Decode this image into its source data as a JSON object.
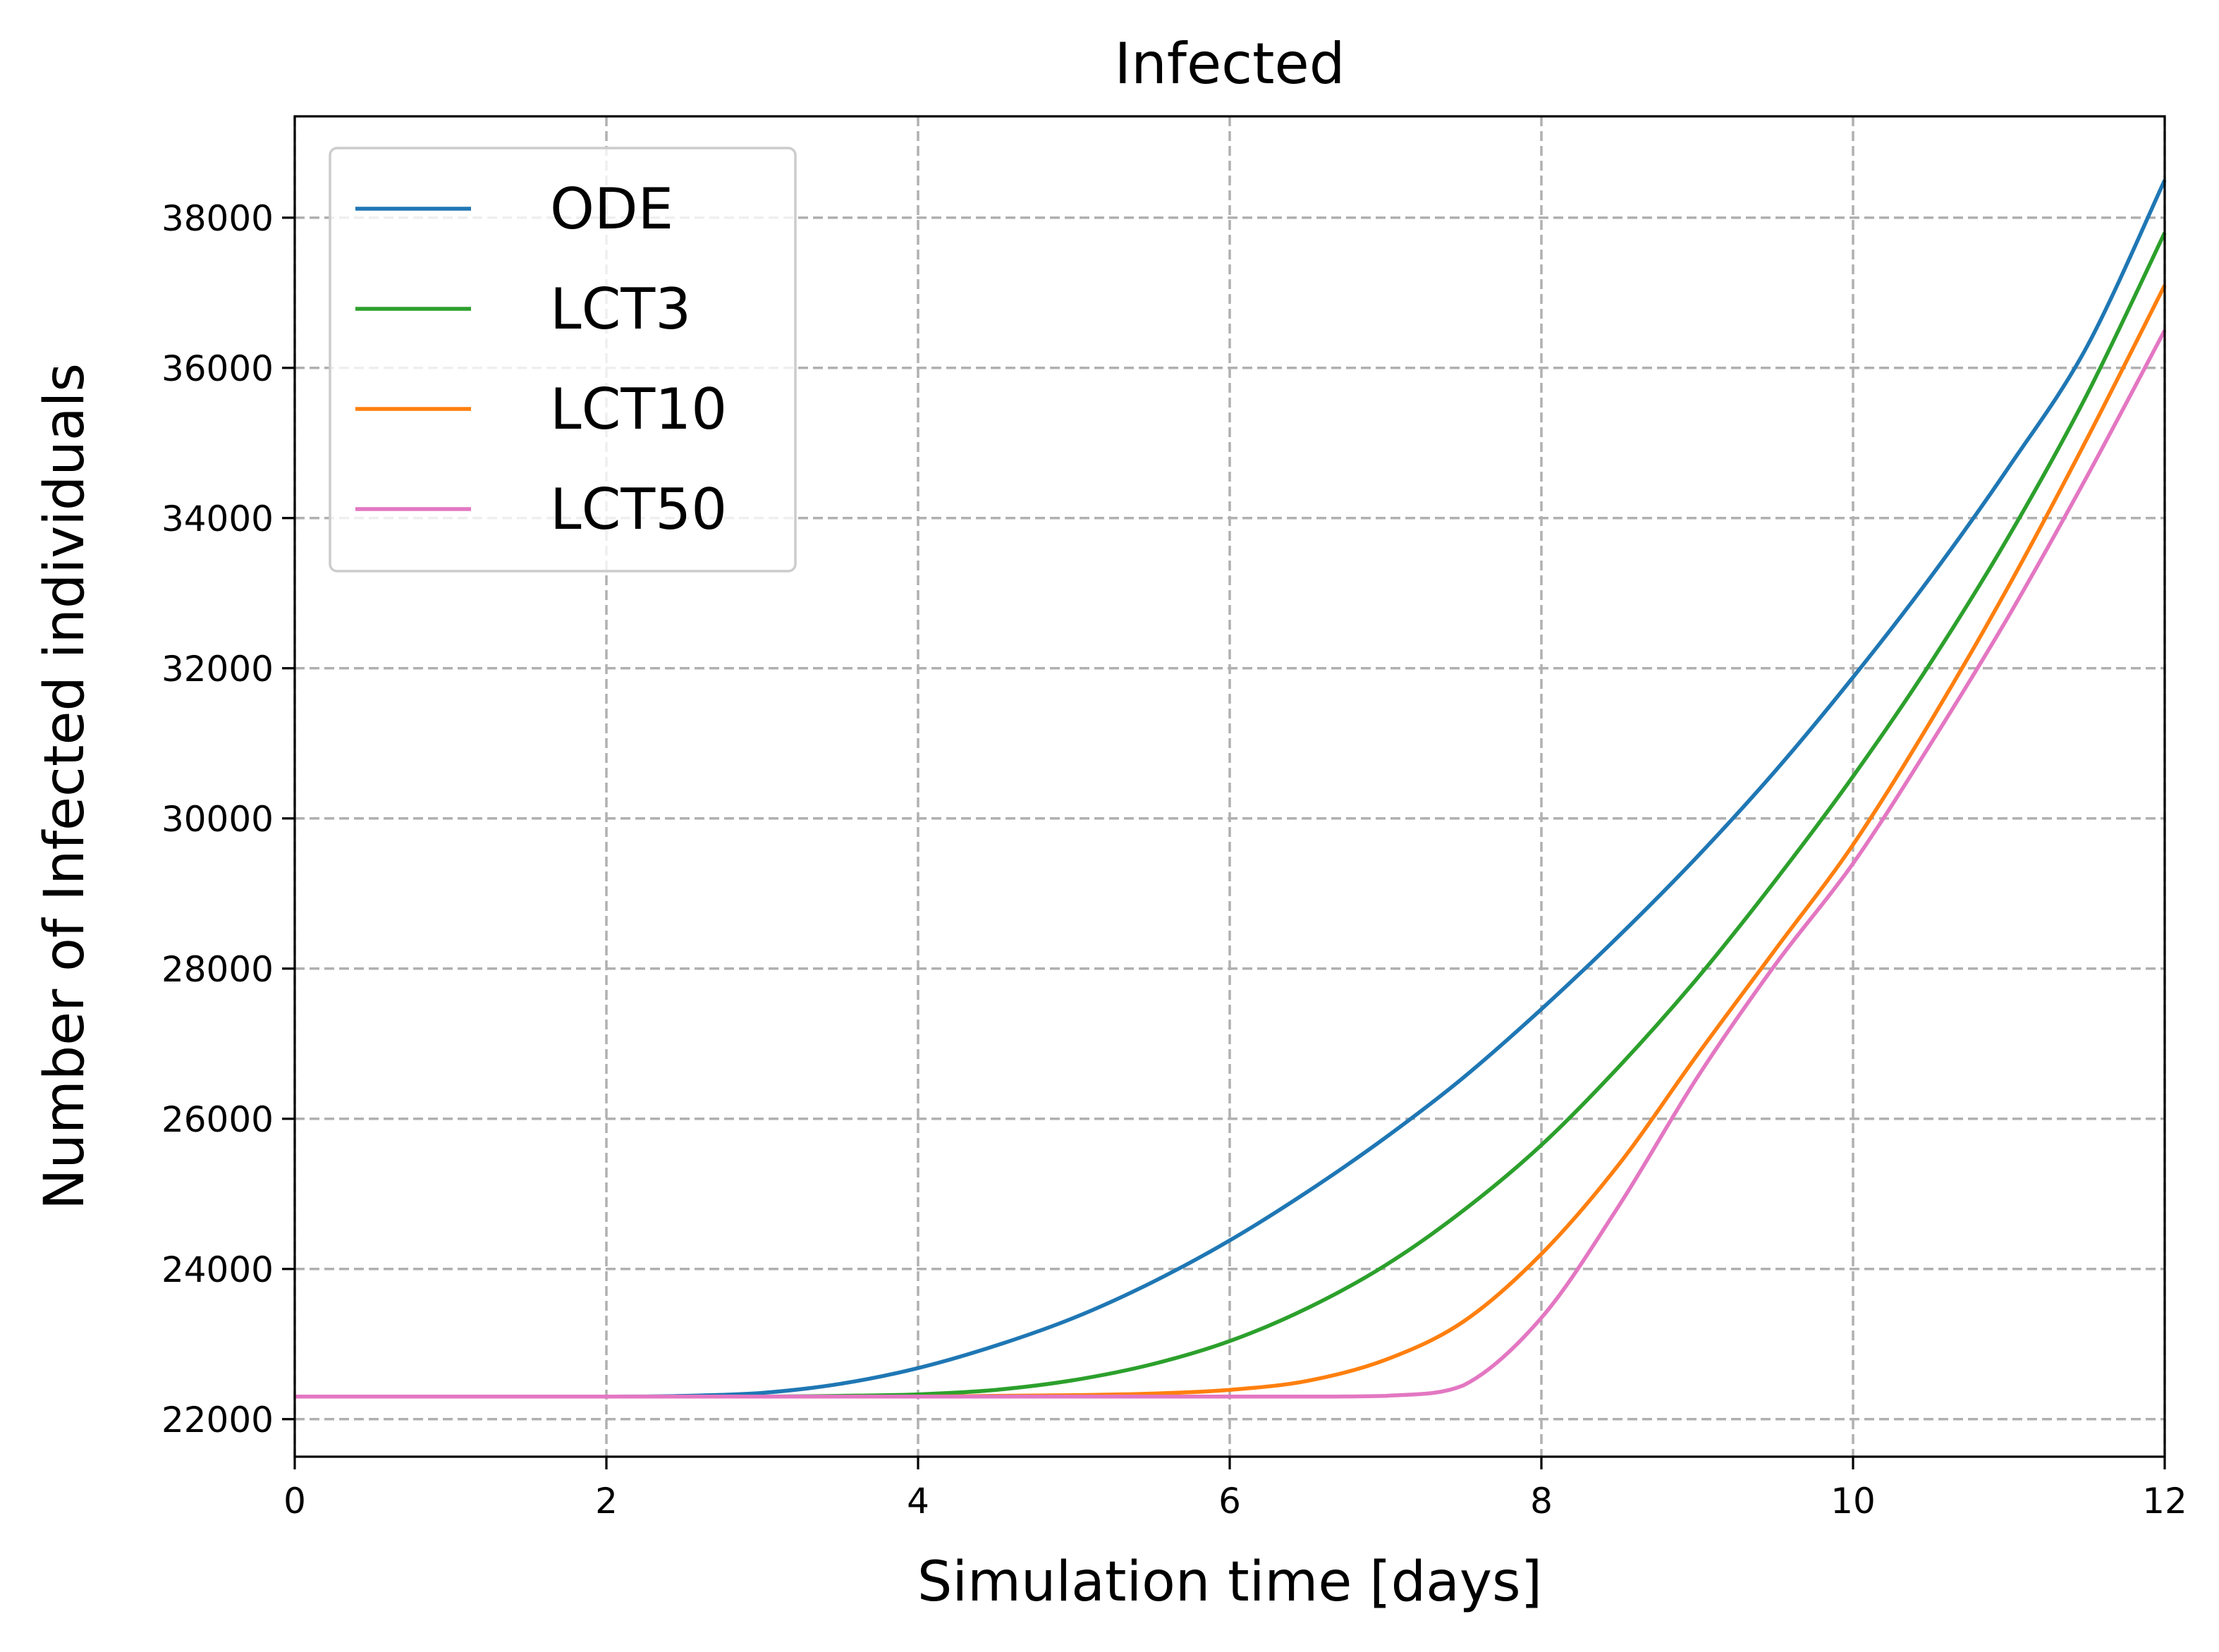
{
  "chart_data": {
    "type": "line",
    "title": "Infected",
    "xlabel": "Simulation time [days]",
    "ylabel": "Number of Infected individuals",
    "xlim": [
      0,
      12
    ],
    "ylim": [
      21500,
      39350
    ],
    "xticks": [
      0,
      2,
      4,
      6,
      8,
      10,
      12
    ],
    "yticks": [
      22000,
      24000,
      26000,
      28000,
      30000,
      32000,
      34000,
      36000,
      38000
    ],
    "grid": true,
    "legend_position": "top-left",
    "x": [
      0,
      1,
      2,
      2.5,
      3,
      3.5,
      4,
      4.5,
      5,
      5.5,
      6,
      6.5,
      7,
      7.5,
      8,
      8.5,
      9,
      9.5,
      10,
      10.5,
      11,
      11.5,
      12
    ],
    "series": [
      {
        "name": "ODE",
        "color": "#1f77b4",
        "values": [
          22300,
          22300,
          22300,
          22310,
          22350,
          22470,
          22680,
          22980,
          23350,
          23820,
          24380,
          25030,
          25750,
          26550,
          27460,
          28440,
          29490,
          30630,
          31880,
          33220,
          34680,
          36280,
          38500
        ]
      },
      {
        "name": "LCT3",
        "color": "#2ca02c",
        "values": [
          22300,
          22300,
          22300,
          22300,
          22300,
          22310,
          22330,
          22390,
          22520,
          22730,
          23040,
          23480,
          24050,
          24780,
          25650,
          26700,
          27870,
          29170,
          30560,
          32080,
          33760,
          35640,
          37800
        ]
      },
      {
        "name": "LCT10",
        "color": "#ff7f0e",
        "values": [
          22300,
          22300,
          22300,
          22300,
          22300,
          22300,
          22300,
          22310,
          22320,
          22340,
          22390,
          22510,
          22790,
          23300,
          24200,
          25400,
          26850,
          28250,
          29650,
          31300,
          33100,
          35050,
          37100
        ]
      },
      {
        "name": "LCT50",
        "color": "#e377c2",
        "values": [
          22300,
          22300,
          22300,
          22300,
          22300,
          22300,
          22300,
          22300,
          22300,
          22300,
          22300,
          22300,
          22310,
          22450,
          23350,
          24850,
          26550,
          28050,
          29400,
          31000,
          32700,
          34550,
          36500
        ]
      }
    ]
  }
}
